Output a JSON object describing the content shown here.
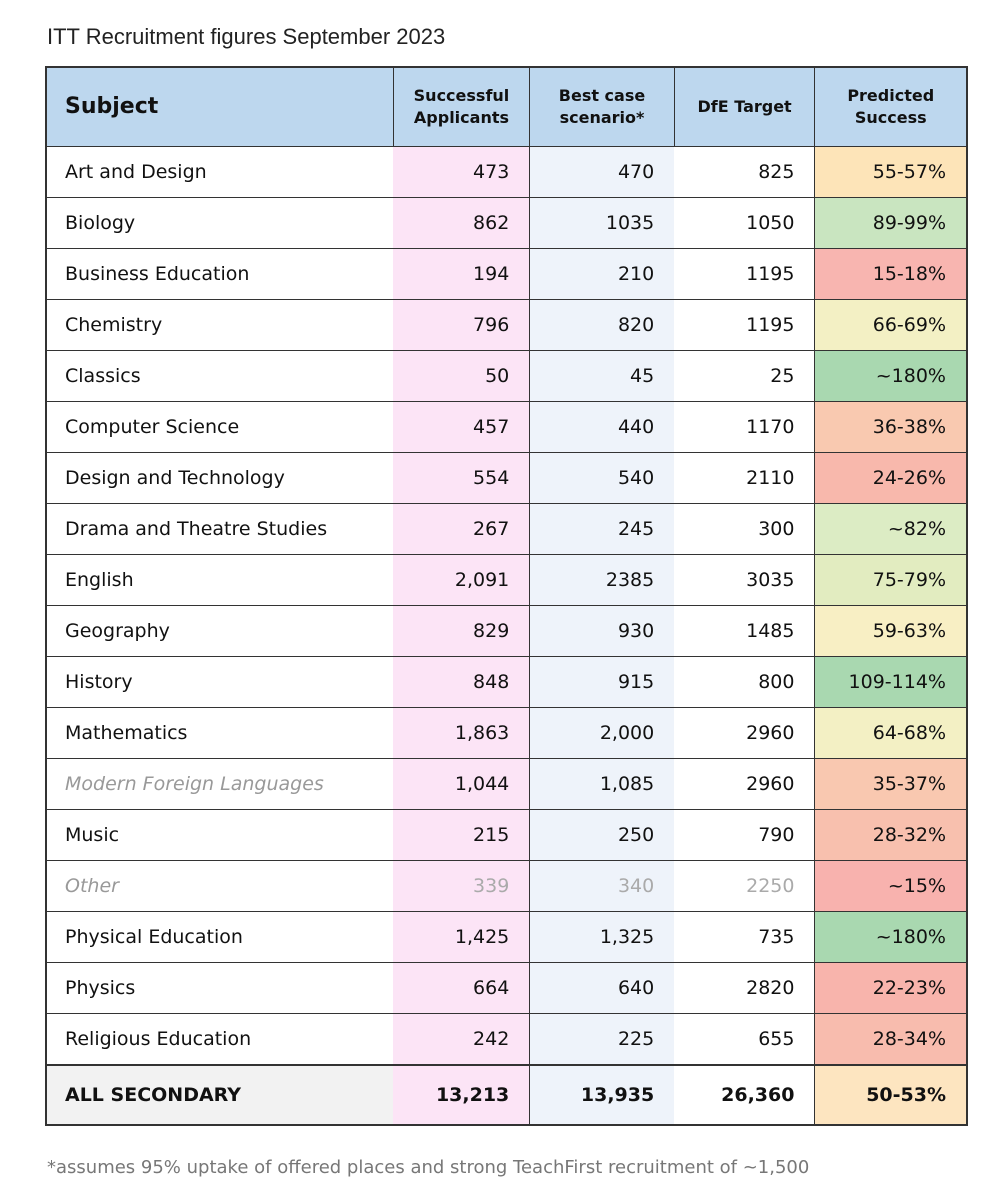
{
  "title": "ITT Recruitment figures September 2023",
  "table": {
    "header": [
      "Subject",
      "Successful Applicants",
      "Best case scenario*",
      "DfE Target",
      "Predicted Success"
    ],
    "rows": [
      [
        "Art and Design",
        "473",
        "470",
        "825",
        "55-57%"
      ],
      [
        "Biology",
        "862",
        "1035",
        "1050",
        "89-99%"
      ],
      [
        "Business Education",
        "194",
        "210",
        "1195",
        "15-18%"
      ],
      [
        "Chemistry",
        "796",
        "820",
        "1195",
        "66-69%"
      ],
      [
        "Classics",
        "50",
        "45",
        "25",
        "~180%"
      ],
      [
        "Computer Science",
        "457",
        "440",
        "1170",
        "36-38%"
      ],
      [
        "Design and Technology",
        "554",
        "540",
        "2110",
        "24-26%"
      ],
      [
        "Drama and Theatre Studies",
        "267",
        "245",
        "300",
        "~82%"
      ],
      [
        "English",
        "2,091",
        "2385",
        "3035",
        "75-79%"
      ],
      [
        "Geography",
        "829",
        "930",
        "1485",
        "59-63%"
      ],
      [
        "History",
        "848",
        "915",
        "800",
        "109-114%"
      ],
      [
        "Mathematics",
        "1,863",
        "2,000",
        "2960",
        "64-68%"
      ],
      [
        "Modern Foreign Languages",
        "1,044",
        "1,085",
        "2960",
        "35-37%"
      ],
      [
        "Music",
        "215",
        "250",
        "790",
        "28-32%"
      ],
      [
        "Other",
        "339",
        "340",
        "2250",
        "~15%"
      ],
      [
        "Physical Education",
        "1,425",
        "1,325",
        "735",
        "~180%"
      ],
      [
        "Physics",
        "664",
        "640",
        "2820",
        "22-23%"
      ],
      [
        "Religious Education",
        "242",
        "225",
        "655",
        "28-34%"
      ]
    ],
    "predicted_colors": [
      "#fde4b8",
      "#c9e5c0",
      "#f8b5b0",
      "#f3f0c4",
      "#a9d8b0",
      "#f9c9b0",
      "#f8b8ac",
      "#dcecc4",
      "#e2ecc0",
      "#f8efc4",
      "#a9d8b0",
      "#f3f0c4",
      "#f9c8b0",
      "#f8c0ae",
      "#f8b2ae",
      "#a9d8b0",
      "#f8b4ac",
      "#f8bcae"
    ],
    "total": [
      "ALL SECONDARY",
      "13,213",
      "13,935",
      "26,360",
      "50-53%"
    ],
    "total_color": "#fde5c0"
  },
  "footnote": "*assumes 95% uptake of offered places and strong TeachFirst recruitment of ~1,500"
}
